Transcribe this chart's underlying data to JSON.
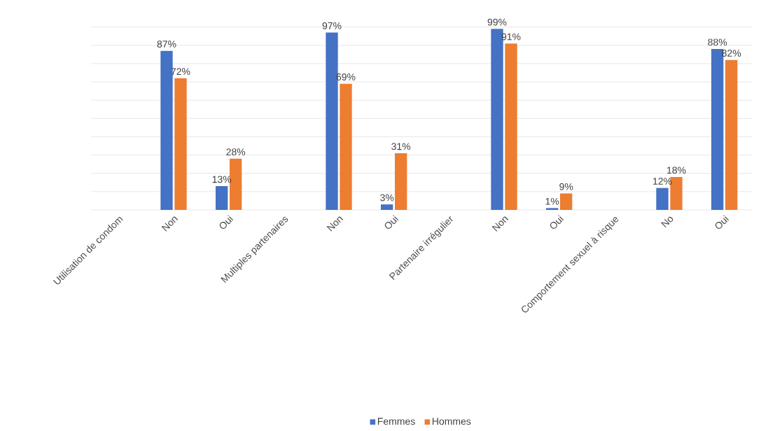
{
  "chart_data": {
    "type": "bar",
    "categories": [
      "Utilisation de condom",
      "Non",
      "Oui",
      "Multiples partenaires",
      "Non",
      "Oui",
      "Partenaire irrégulier",
      "Non",
      "Oui",
      "Comportement sexuel à risque",
      "No",
      "Oui"
    ],
    "series": [
      {
        "name": "Femmes",
        "color": "#4472c4",
        "values": [
          null,
          87,
          13,
          null,
          97,
          3,
          null,
          99,
          1,
          null,
          12,
          88
        ],
        "value_labels": [
          null,
          "87%",
          "13%",
          null,
          "97%",
          "3%",
          null,
          "99%",
          "1%",
          null,
          "12%",
          "88%"
        ]
      },
      {
        "name": "Hommes",
        "color": "#ed7d31",
        "values": [
          null,
          72,
          28,
          null,
          69,
          31,
          null,
          91,
          9,
          null,
          18,
          82
        ],
        "value_labels": [
          null,
          "72%",
          "28%",
          null,
          "69%",
          "31%",
          null,
          "91%",
          "9%",
          null,
          "18%",
          "82%"
        ]
      }
    ],
    "ylim": [
      0,
      100
    ],
    "yticks": [
      {
        "value": 0,
        "label": null
      },
      {
        "value": 10,
        "label": null
      },
      {
        "value": 20,
        "label": null
      },
      {
        "value": 30,
        "label": null
      },
      {
        "value": 40,
        "label": null
      },
      {
        "value": 50,
        "label": null
      },
      {
        "value": 60,
        "label": null
      },
      {
        "value": 70,
        "label": null
      },
      {
        "value": 80,
        "label": null
      },
      {
        "value": 90,
        "label": null
      },
      {
        "value": 100,
        "label": null
      }
    ],
    "grid": "y",
    "tick_labels": "x",
    "legend": "bottom"
  }
}
